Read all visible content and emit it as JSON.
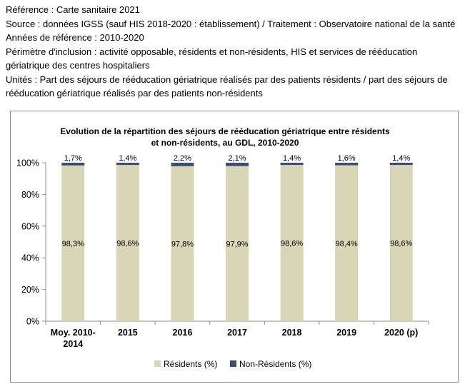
{
  "meta": {
    "reference": "Référence : Carte sanitaire 2021",
    "source": "Source : données IGSS (sauf HIS 2018-2020 : établissement) / Traitement : Observatoire national de la santé",
    "years": "Années de référence : 2010-2020",
    "perimeter": "Périmètre d'inclusion : activité opposable, résidents et non-résidents, HIS et services de rééducation gériatrique des centres hospitaliers",
    "units": "Unités : Part des séjours de rééducation gériatrique réalisés par des patients résidents / part des séjours de rééducation gériatrique réalisés par des patients non-résidents"
  },
  "chart_data": {
    "type": "bar",
    "stacked": true,
    "title_line1": "Evolution de la répartition des séjours de rééducation gériatrique entre résidents",
    "title_line2": "et non-résidents, au GDL, 2010-2020",
    "categories": [
      "Moy. 2010-\n2014",
      "2015",
      "2016",
      "2017",
      "2018",
      "2019",
      "2020 (p)"
    ],
    "series": [
      {
        "name": "Résidents (%)",
        "color": "#d9d6b8",
        "values": [
          98.3,
          98.6,
          97.8,
          97.9,
          98.6,
          98.4,
          98.6
        ],
        "labels": [
          "98,3%",
          "98,6%",
          "97,8%",
          "97,9%",
          "98,6%",
          "98,4%",
          "98,6%"
        ]
      },
      {
        "name": "Non-Résidents (%)",
        "color": "#3b4e6e",
        "values": [
          1.7,
          1.4,
          2.2,
          2.1,
          1.4,
          1.6,
          1.4
        ],
        "labels": [
          "1,7%",
          "1,4%",
          "2,2%",
          "2,1%",
          "1,4%",
          "1,6%",
          "1,4%"
        ]
      }
    ],
    "ylim": [
      0,
      100
    ],
    "yticks": [
      0,
      20,
      40,
      60,
      80,
      100
    ],
    "ytick_labels": [
      "0%",
      "20%",
      "40%",
      "60%",
      "80%",
      "100%"
    ],
    "grid": false,
    "legend": "bottom"
  }
}
